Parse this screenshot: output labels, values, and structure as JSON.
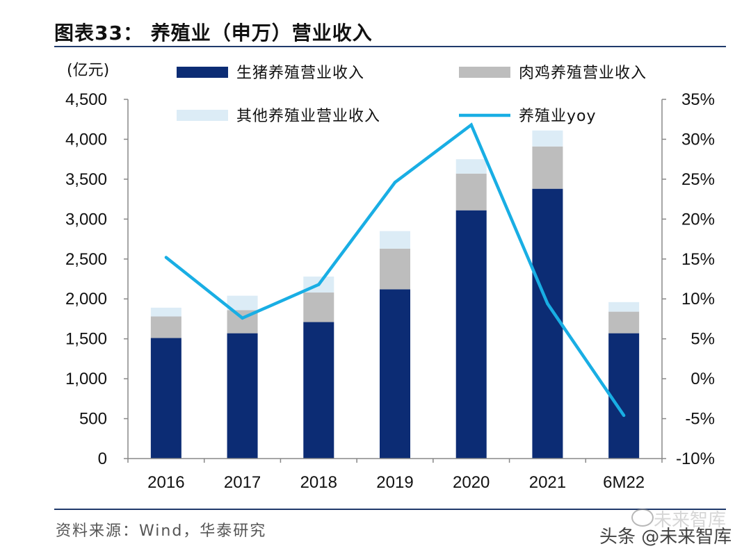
{
  "header": {
    "title": "图表33：  养殖业（申万）营业收入"
  },
  "footer": {
    "source": "资料来源：Wind，华泰研究"
  },
  "watermark": {
    "text": "头条 @未来智库",
    "brand": "未来智库"
  },
  "colors": {
    "pig": "#0c2c74",
    "broiler": "#bdbdbd",
    "other": "#dcecf6",
    "yoy": "#19aee4",
    "axis": "#888888",
    "rule": "#1f3a6b"
  },
  "chart_data": {
    "type": "stacked-bar-line",
    "title": "养殖业（申万）营业收入",
    "ylabel_left": "(亿元)",
    "categories": [
      "2016",
      "2017",
      "2018",
      "2019",
      "2020",
      "2021",
      "6M22"
    ],
    "series": [
      {
        "name": "生猪养殖营业收入",
        "type": "bar",
        "axis": "left",
        "values": [
          1510,
          1570,
          1710,
          2120,
          3110,
          3380,
          1570
        ]
      },
      {
        "name": "肉鸡养殖营业收入",
        "type": "bar",
        "axis": "left",
        "values": [
          270,
          290,
          370,
          510,
          460,
          530,
          270
        ]
      },
      {
        "name": "其他养殖业营业收入",
        "type": "bar",
        "axis": "left",
        "values": [
          110,
          180,
          200,
          220,
          180,
          200,
          120
        ]
      },
      {
        "name": "养殖业yoy",
        "type": "line",
        "axis": "right",
        "values": [
          15.2,
          7.6,
          11.8,
          24.6,
          31.8,
          9.4,
          -4.6
        ]
      }
    ],
    "left_axis": {
      "min": 0,
      "max": 4500,
      "step": 500,
      "ticks": [
        "0",
        "500",
        "1,000",
        "1,500",
        "2,000",
        "2,500",
        "3,000",
        "3,500",
        "4,000",
        "4,500"
      ]
    },
    "right_axis": {
      "min": -10,
      "max": 35,
      "step": 5,
      "ticks": [
        "-10%",
        "-5%",
        "0%",
        "5%",
        "10%",
        "15%",
        "20%",
        "25%",
        "30%",
        "35%"
      ]
    },
    "legend": [
      "生猪养殖营业收入",
      "肉鸡养殖营业收入",
      "其他养殖业营业收入",
      "养殖业yoy"
    ]
  }
}
